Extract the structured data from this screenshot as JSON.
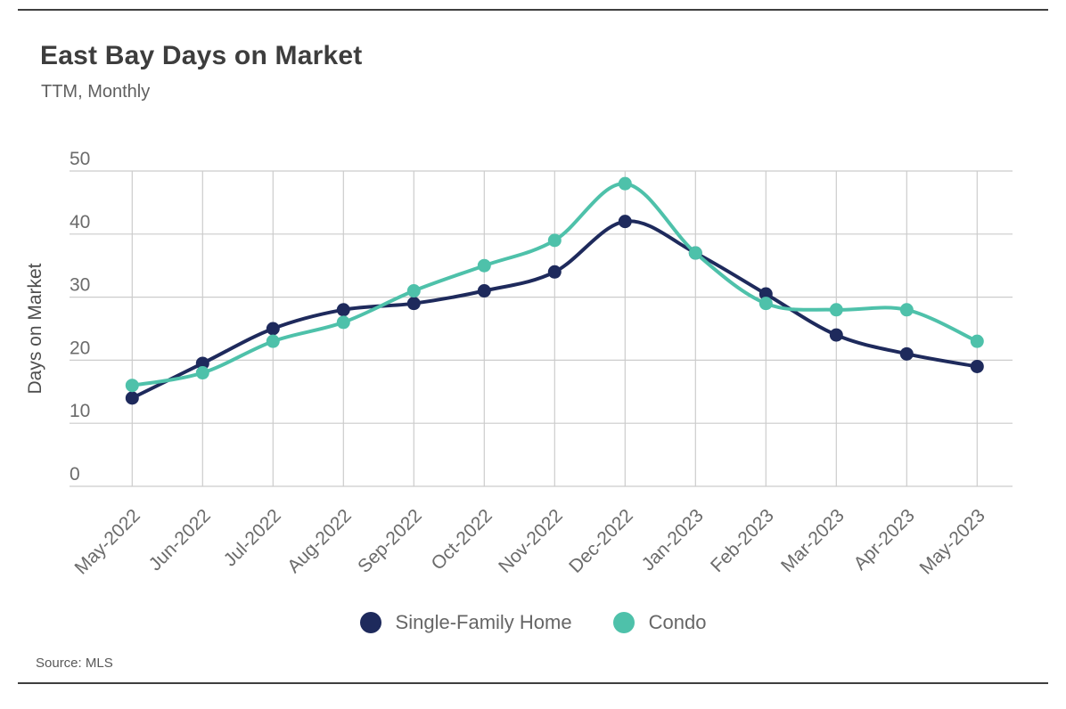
{
  "header": {
    "title": "East Bay Days on Market",
    "subtitle": "TTM, Monthly"
  },
  "footer": {
    "source": "Source: MLS"
  },
  "chart_data": {
    "type": "line",
    "title": "East Bay Days on Market",
    "subtitle": "TTM, Monthly",
    "xlabel": "",
    "ylabel": "Days on Market",
    "ylim": [
      0,
      50
    ],
    "yticks": [
      0,
      10,
      20,
      30,
      40,
      50
    ],
    "grid": true,
    "legend_position": "bottom",
    "categories": [
      "May-2022",
      "Jun-2022",
      "Jul-2022",
      "Aug-2022",
      "Sep-2022",
      "Oct-2022",
      "Nov-2022",
      "Dec-2022",
      "Jan-2023",
      "Feb-2023",
      "Mar-2023",
      "Apr-2023",
      "May-2023"
    ],
    "series": [
      {
        "name": "Single-Family Home",
        "color": "#1e2a5c",
        "values": [
          14,
          19.5,
          25,
          28,
          29,
          31,
          34,
          42,
          37,
          30.5,
          24,
          21,
          19
        ]
      },
      {
        "name": "Condo",
        "color": "#4ec1aa",
        "values": [
          16,
          18,
          23,
          26,
          31,
          35,
          39,
          48,
          37,
          29,
          28,
          28,
          23
        ]
      }
    ],
    "source": "Source: MLS"
  },
  "colors": {
    "grid": "#cccccc",
    "axis_text": "#6b6b6b",
    "axis_title_text": "#4d4d4d",
    "title_text": "#3d3d3d",
    "rule": "#3f3f3f"
  }
}
